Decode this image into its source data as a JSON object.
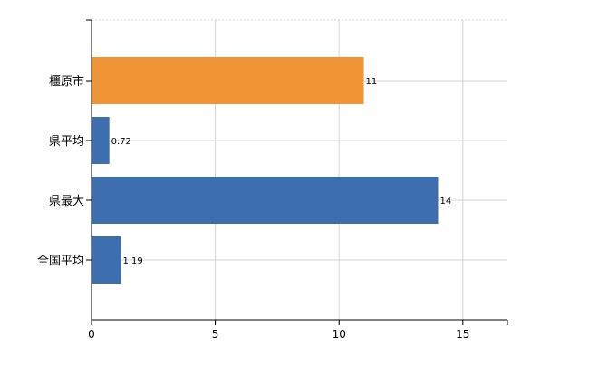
{
  "chart_data": {
    "type": "bar",
    "orientation": "horizontal",
    "categories": [
      "橿原市",
      "県平均",
      "県最大",
      "全国平均"
    ],
    "values": [
      11,
      0.72,
      14,
      1.19
    ],
    "value_labels": [
      "11",
      "0.72",
      "14",
      "1.19"
    ],
    "bar_colors": [
      "#f09436",
      "#3d6fae",
      "#3d6fae",
      "#3d6fae"
    ],
    "xlim": [
      0,
      16.8
    ],
    "x_ticks": [
      0,
      5,
      10,
      15
    ],
    "x_tick_labels": [
      "0",
      "5",
      "10",
      "15"
    ],
    "grid": true,
    "legend": "none"
  }
}
